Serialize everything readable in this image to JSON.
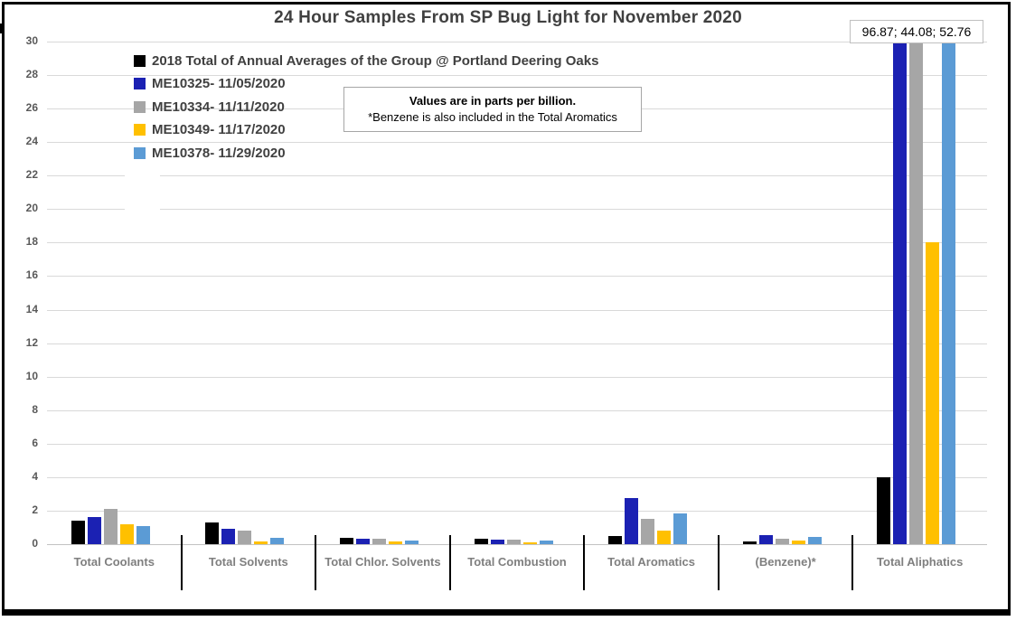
{
  "chart_data": {
    "type": "bar",
    "title": "24 Hour Samples From SP Bug Light for November 2020",
    "categories": [
      "Total Coolants",
      "Total Solvents",
      "Total Chlor. Solvents",
      "Total Combustion",
      "Total Aromatics",
      "(Benzene)*",
      "Total Aliphatics"
    ],
    "series": [
      {
        "name": "2018 Total of Annual Averages of the Group @ Portland Deering Oaks",
        "color": "#000000",
        "values": [
          1.4,
          1.3,
          0.4,
          0.3,
          0.5,
          0.15,
          4.0
        ]
      },
      {
        "name": "ME10325- 11/05/2020",
        "color": "#1b21b3",
        "values": [
          1.6,
          0.9,
          0.3,
          0.25,
          2.75,
          0.55,
          96.87
        ]
      },
      {
        "name": "ME10334- 11/11/2020",
        "color": "#a6a6a6",
        "values": [
          2.1,
          0.8,
          0.35,
          0.25,
          1.5,
          0.35,
          44.08
        ]
      },
      {
        "name": "ME10349- 11/17/2020",
        "color": "#ffc000",
        "values": [
          1.2,
          0.15,
          0.15,
          0.1,
          0.8,
          0.2,
          18.0
        ]
      },
      {
        "name": "ME10378- 11/29/2020",
        "color": "#5b9bd5",
        "values": [
          1.1,
          0.4,
          0.2,
          0.2,
          1.85,
          0.45,
          52.76
        ]
      }
    ],
    "ylim": [
      0,
      30
    ],
    "ytick_step": 2,
    "y_tick_labels": [
      "0",
      "2",
      "4",
      "6",
      "8",
      "10",
      "12",
      "14",
      "16",
      "18",
      "20",
      "22",
      "24",
      "26",
      "28",
      "30"
    ],
    "grid": true,
    "legend_position": "inside-top-left",
    "grid_color": "#d9d9d9"
  },
  "annotations": {
    "clipped_values_label": "96.87; 44.08; 52.76",
    "note_line1": "Values are in parts per billion.",
    "note_line2": "*Benzene is also included in the Total Aromatics"
  }
}
